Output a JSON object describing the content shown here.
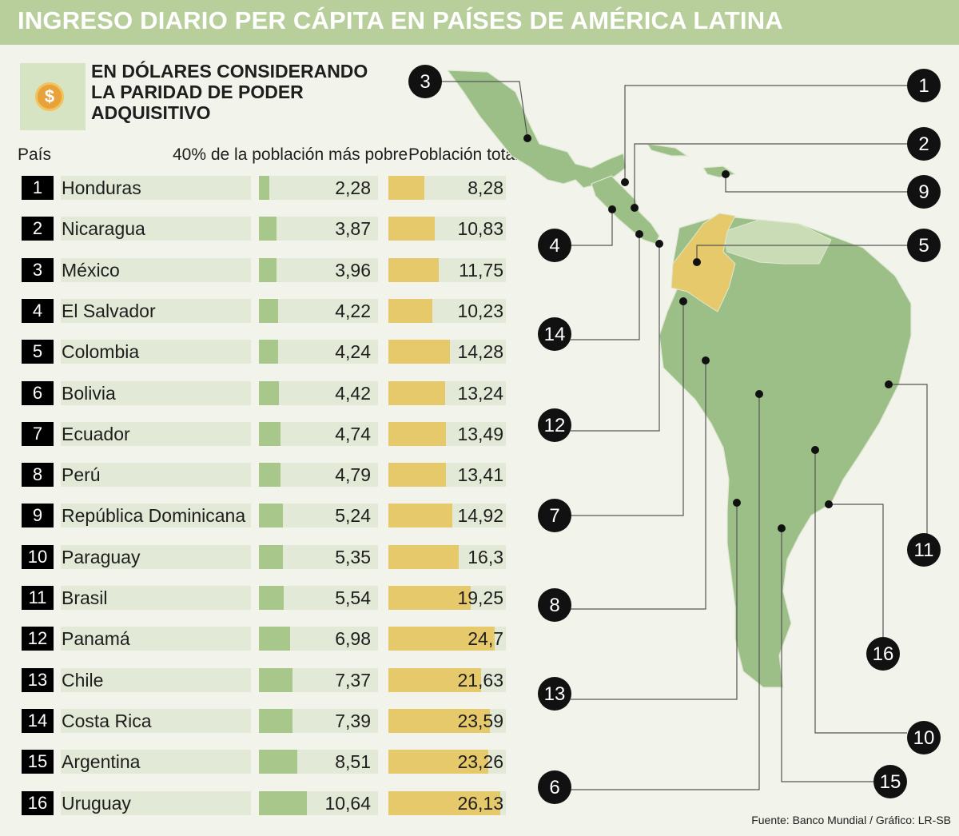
{
  "header": {
    "title": "INGRESO DIARIO PER CÁPITA EN PAÍSES DE AMÉRICA LATINA"
  },
  "legend": {
    "subtitle": "EN DÓLARES CONSIDERANDO LA PARIDAD DE PODER ADQUISITIVO",
    "icon": "dollar-coin-icon",
    "coin_symbol": "$"
  },
  "colors": {
    "header": "#b8cf9b",
    "poor_bar": "#a8c78a",
    "total_bar": "#e6c96a",
    "highlight": "#e6c96a",
    "land": "#9bbf87"
  },
  "table": {
    "headers": {
      "country": "País",
      "poorest": "40% de la población más pobre",
      "total": "Población total"
    }
  },
  "chart_data": {
    "type": "bar",
    "title": "INGRESO DIARIO PER CÁPITA EN PAÍSES DE AMÉRICA LATINA",
    "subtitle": "EN DÓLARES CONSIDERANDO LA PARIDAD DE PODER ADQUISITIVO",
    "categories": [
      "Honduras",
      "Nicaragua",
      "México",
      "El Salvador",
      "Colombia",
      "Bolivia",
      "Ecuador",
      "Perú",
      "República Dominicana",
      "Paraguay",
      "Brasil",
      "Panamá",
      "Chile",
      "Costa Rica",
      "Argentina",
      "Uruguay"
    ],
    "ranks": [
      "1",
      "2",
      "3",
      "4",
      "5",
      "6",
      "7",
      "8",
      "9",
      "10",
      "11",
      "12",
      "13",
      "14",
      "15",
      "16"
    ],
    "series": [
      {
        "name": "40% de la población más pobre",
        "values": [
          2.28,
          3.87,
          3.96,
          4.22,
          4.24,
          4.42,
          4.74,
          4.79,
          5.24,
          5.35,
          5.54,
          6.98,
          7.37,
          7.39,
          8.51,
          10.64
        ],
        "labels": [
          "2,28",
          "3,87",
          "3,96",
          "4,22",
          "4,24",
          "4,42",
          "4,74",
          "4,79",
          "5,24",
          "5,35",
          "5,54",
          "6,98",
          "7,37",
          "7,39",
          "8,51",
          "10,64"
        ]
      },
      {
        "name": "Población total",
        "values": [
          8.28,
          10.83,
          11.75,
          10.23,
          14.28,
          13.24,
          13.49,
          13.41,
          14.92,
          16.3,
          19.25,
          24.7,
          21.63,
          23.59,
          23.26,
          26.13
        ],
        "labels": [
          "8,28",
          "10,83",
          "11,75",
          "10,23",
          "14,28",
          "13,24",
          "13,49",
          "13,41",
          "14,92",
          "16,3",
          "19,25",
          "24,7",
          "21,63",
          "23,59",
          "23,26",
          "26,13"
        ]
      }
    ],
    "xlabel": "",
    "ylabel": "",
    "ylim": [
      0,
      27
    ]
  },
  "map": {
    "highlighted_country": "Colombia",
    "callouts": [
      "1",
      "2",
      "3",
      "4",
      "5",
      "6",
      "7",
      "8",
      "9",
      "10",
      "11",
      "12",
      "13",
      "14",
      "15",
      "16"
    ]
  },
  "footer": {
    "source": "Fuente:  Banco Mundial / Gráfico: LR-SB"
  }
}
